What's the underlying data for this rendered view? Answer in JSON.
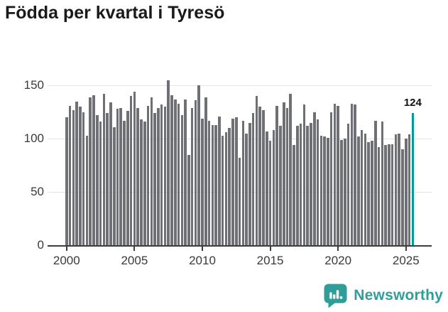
{
  "chart_data": {
    "type": "bar",
    "title": "Födda per kvartal i Tyresö",
    "frequency": "quarterly",
    "x_start": "2000-Q1",
    "x_end": "2025-Q3",
    "values": [
      120,
      131,
      127,
      135,
      130,
      125,
      103,
      139,
      141,
      122,
      116,
      142,
      124,
      134,
      111,
      128,
      129,
      117,
      126,
      140,
      144,
      129,
      118,
      116,
      131,
      139,
      124,
      129,
      132,
      130,
      155,
      141,
      137,
      133,
      122,
      137,
      85,
      129,
      136,
      150,
      119,
      139,
      117,
      113,
      113,
      121,
      103,
      106,
      110,
      119,
      120,
      82,
      117,
      105,
      115,
      124,
      140,
      130,
      127,
      107,
      98,
      108,
      131,
      112,
      134,
      129,
      142,
      94,
      112,
      114,
      132,
      112,
      115,
      125,
      118,
      103,
      102,
      101,
      125,
      133,
      131,
      99,
      100,
      114,
      133,
      132,
      102,
      108,
      105,
      97,
      98,
      117,
      92,
      116,
      94,
      95,
      95,
      104,
      105,
      90,
      100,
      104,
      124
    ],
    "highlight_last_bar": true,
    "last_value_label": "124",
    "y_ticks": [
      0,
      50,
      100,
      150
    ],
    "x_tick_labels": [
      "2000",
      "2005",
      "2010",
      "2015",
      "2020",
      "2025"
    ],
    "ylim": [
      0,
      157
    ],
    "grid": "horizontal",
    "legend": "none",
    "colors": {
      "bar": "#6e7076",
      "highlight": "#009c99",
      "gridline": "#e3e3e3",
      "axis": "#3d3d3d",
      "tick_text": "#3a3a3a",
      "value_label_text": "#111111"
    }
  },
  "footer": {
    "brand": "Newsworthy",
    "brand_color": "#2f9e99",
    "logo_icon": "speech-bubble-bar-chart-icon"
  }
}
